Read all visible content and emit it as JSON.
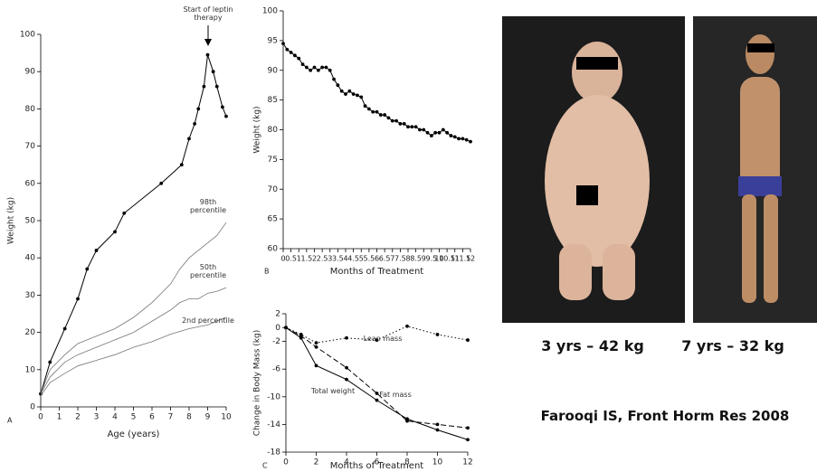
{
  "chart_data": [
    {
      "type": "line",
      "panel_label": "A",
      "x_label": "Age (years)",
      "y_label": "Weight (kg)",
      "xlim": [
        0,
        10
      ],
      "xticks": [
        0,
        1,
        2,
        3,
        4,
        5,
        6,
        7,
        8,
        9,
        10
      ],
      "ylim": [
        0,
        100
      ],
      "yticks": [
        0,
        10,
        20,
        30,
        40,
        50,
        60,
        70,
        80,
        90,
        100
      ],
      "annotations": [
        "Start of leptin therapy"
      ],
      "series": [
        {
          "color": "#000000",
          "line_style": "solid",
          "markers": true,
          "x": [
            0,
            0.5,
            1.3,
            2,
            2.5,
            3,
            4,
            4.5,
            6.5,
            7.6,
            8,
            8.3,
            8.5,
            8.8,
            9,
            9.3,
            9.5,
            9.8,
            10
          ],
          "values": [
            3.5,
            12,
            21,
            29,
            37,
            42,
            47,
            52,
            60,
            65,
            72,
            76,
            80,
            86,
            94.5,
            90,
            86,
            80.5,
            78
          ]
        },
        {
          "name": "98th percentile",
          "color": "#777777",
          "line_style": "solid",
          "markers": false,
          "x": [
            0,
            0.5,
            1.3,
            2,
            3,
            4,
            5,
            6,
            7,
            7.5,
            8,
            8.5,
            9,
            9.5,
            10
          ],
          "values": [
            3.5,
            10,
            14,
            17,
            19,
            21,
            24,
            28,
            33,
            37,
            40,
            42,
            44,
            46,
            49.5
          ]
        },
        {
          "name": "50th percentile",
          "color": "#777777",
          "line_style": "solid",
          "markers": false,
          "x": [
            0,
            0.5,
            1.3,
            2,
            3,
            4,
            5,
            6,
            7,
            7.5,
            8,
            8.5,
            9,
            9.5,
            10
          ],
          "values": [
            3.5,
            8,
            12,
            14,
            16,
            18,
            20,
            23,
            26,
            28,
            29,
            29,
            30.5,
            31,
            32
          ]
        },
        {
          "name": "2nd percentile",
          "color": "#777777",
          "line_style": "solid",
          "markers": false,
          "x": [
            0,
            0.5,
            1.3,
            2,
            3,
            4,
            5,
            6,
            7,
            8,
            9,
            10
          ],
          "values": [
            3,
            6.5,
            9,
            11,
            12.5,
            14,
            16,
            17.5,
            19.5,
            21,
            22,
            24
          ]
        }
      ]
    },
    {
      "type": "line",
      "panel_label": "B",
      "x_label": "Months of Treatment",
      "y_label": "Weight (kg)",
      "xlim": [
        0,
        12
      ],
      "xticks": [
        0,
        0.5,
        1,
        1.5,
        2,
        2.5,
        3,
        3.5,
        4,
        4.5,
        5,
        5.5,
        6,
        6.5,
        7,
        7.5,
        8,
        8.5,
        9,
        9.5,
        10,
        10.5,
        11,
        11.5,
        12
      ],
      "ylim": [
        60,
        100
      ],
      "yticks": [
        60,
        65,
        70,
        75,
        80,
        85,
        90,
        95,
        100
      ],
      "series": [
        {
          "color": "#000000",
          "line_style": "solid",
          "markers": true,
          "x": [
            0,
            0.25,
            0.5,
            0.75,
            1,
            1.25,
            1.5,
            1.75,
            2,
            2.25,
            2.5,
            2.75,
            3,
            3.25,
            3.5,
            3.75,
            4,
            4.25,
            4.5,
            4.75,
            5,
            5.25,
            5.5,
            5.75,
            6,
            6.25,
            6.5,
            6.75,
            7,
            7.25,
            7.5,
            7.75,
            8,
            8.25,
            8.5,
            8.75,
            9,
            9.25,
            9.5,
            9.75,
            10,
            10.25,
            10.5,
            10.75,
            11,
            11.25,
            11.5,
            11.75,
            12
          ],
          "values": [
            94.5,
            93.5,
            93,
            92.5,
            92,
            91,
            90.5,
            90,
            90.5,
            90,
            90.5,
            90.5,
            90,
            88.5,
            87.5,
            86.5,
            86,
            86.5,
            86,
            85.8,
            85.5,
            84,
            83.5,
            83,
            83,
            82.5,
            82.5,
            82,
            81.5,
            81.5,
            81,
            81,
            80.5,
            80.5,
            80.5,
            80,
            80,
            79.5,
            79,
            79.5,
            79.5,
            80,
            79.5,
            79,
            78.8,
            78.5,
            78.5,
            78.3,
            78
          ]
        }
      ]
    },
    {
      "type": "line",
      "panel_label": "C",
      "x_label": "Months of Treatment",
      "y_label": "Change in Body Mass (kg)",
      "xlim": [
        0,
        12
      ],
      "xticks": [
        0,
        2,
        4,
        6,
        8,
        10,
        12
      ],
      "ylim": [
        -18,
        2
      ],
      "yticks": [
        -18,
        -14,
        -10,
        -6,
        -2,
        0,
        2
      ],
      "series": [
        {
          "name": "Lean mass",
          "color": "#000000",
          "line_style": "dotted",
          "markers": true,
          "x": [
            0,
            1,
            2,
            4,
            6,
            8,
            10,
            12
          ],
          "values": [
            0,
            -1,
            -2.2,
            -1.5,
            -1.8,
            0.2,
            -1,
            -1.8
          ]
        },
        {
          "name": "Total weight",
          "color": "#000000",
          "line_style": "solid",
          "markers": true,
          "x": [
            0,
            1,
            2,
            4,
            6,
            8,
            10,
            12
          ],
          "values": [
            0,
            -1.5,
            -5.5,
            -7.5,
            -10.5,
            -13.2,
            -14.8,
            -16.2
          ]
        },
        {
          "name": "Fat mass",
          "color": "#000000",
          "line_style": "dashed",
          "markers": true,
          "x": [
            0,
            1,
            2,
            4,
            6,
            8,
            10,
            12
          ],
          "values": [
            0,
            -1.2,
            -2.8,
            -5.8,
            -9.5,
            -13.5,
            -14,
            -14.5
          ]
        }
      ]
    }
  ],
  "captions": [
    "3 yrs – 42 kg",
    "7 yrs – 32 kg"
  ],
  "citation": "Farooqi IS, Front Horm Res 2008"
}
